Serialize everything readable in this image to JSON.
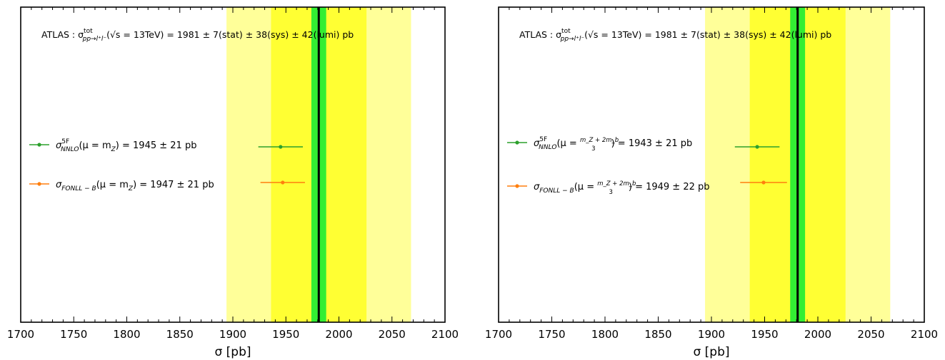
{
  "chart_data": [
    {
      "type": "scatter",
      "xlabel": "σ [pb]",
      "xlim": [
        1700,
        2100
      ],
      "x_ticks": [
        1700,
        1750,
        1800,
        1850,
        1900,
        1950,
        2000,
        2050,
        2100
      ],
      "grid": false,
      "legend": "left",
      "measurement": {
        "value": 1981,
        "stat": 7,
        "sys": 38,
        "lumi": 42,
        "annotation": {
          "prefix": "ATLAS : σ",
          "sup": "tot",
          "sub": "pp→l⁺l⁻",
          "suffix": "(√s = 13TeV) = 1981 ± 7(stat) ± 38(sys) ± 42(lumi) pb"
        }
      },
      "bands": [
        {
          "half_width": 87,
          "color": "#ffff99"
        },
        {
          "half_width": 45,
          "color": "#ffff33"
        },
        {
          "half_width": 7,
          "color": "#33ee33"
        }
      ],
      "series": [
        {
          "value": 1945,
          "error": 21,
          "color": "#2ca02c",
          "label": {
            "sym": "σ",
            "sup": "5F",
            "sub": "NNLO",
            "mid": "(μ = m",
            "mid_sub": "Z",
            "frac_num": "",
            "frac_den": "",
            "tail": ") = 1945 ± 21 pb"
          }
        },
        {
          "value": 1947,
          "error": 21,
          "color": "#ff7f0e",
          "label": {
            "sym": "σ",
            "sup": "",
            "sub": "FONLL − B",
            "mid": "(μ = m",
            "mid_sub": "Z",
            "frac_num": "",
            "frac_den": "",
            "tail": ") = 1947 ± 21 pb"
          }
        }
      ]
    },
    {
      "type": "scatter",
      "xlabel": "σ [pb]",
      "xlim": [
        1700,
        2100
      ],
      "x_ticks": [
        1700,
        1750,
        1800,
        1850,
        1900,
        1950,
        2000,
        2050,
        2100
      ],
      "grid": false,
      "legend": "left",
      "measurement": {
        "value": 1981,
        "stat": 7,
        "sys": 38,
        "lumi": 42,
        "annotation": {
          "prefix": "ATLAS : σ",
          "sup": "tot",
          "sub": "pp→l⁺l⁻",
          "suffix": "(√s = 13TeV) = 1981 ± 7(stat) ± 38(sys) ± 42(lumi) pb"
        }
      },
      "bands": [
        {
          "half_width": 87,
          "color": "#ffff99"
        },
        {
          "half_width": 45,
          "color": "#ffff33"
        },
        {
          "half_width": 7,
          "color": "#33ee33"
        }
      ],
      "series": [
        {
          "value": 1943,
          "error": 21,
          "color": "#2ca02c",
          "label": {
            "sym": "σ",
            "sup": "5F",
            "sub": "NNLO",
            "mid": "(μ = ",
            "mid_sub": "",
            "frac_num": "m_Z + 2m_b",
            "frac_den": "3",
            "tail": ") = 1943 ± 21 pb"
          }
        },
        {
          "value": 1949,
          "error": 22,
          "color": "#ff7f0e",
          "label": {
            "sym": "σ",
            "sup": "",
            "sub": "FONLL − B",
            "mid": "(μ = ",
            "mid_sub": "",
            "frac_num": "m_Z + 2m_b",
            "frac_den": "3",
            "tail": ") = 1949 ± 22 pb"
          }
        }
      ]
    }
  ]
}
